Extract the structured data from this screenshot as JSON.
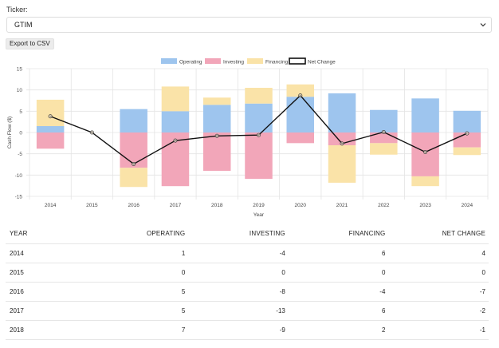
{
  "ticker": {
    "label": "Ticker:",
    "value": "GTIM"
  },
  "export_label": "Export to CSV",
  "colors": {
    "operating": "#9ec5ee",
    "investing": "#f2a6b9",
    "financing": "#fae3a8",
    "net": "#111111",
    "grid": "#e4e4e4"
  },
  "chart_data": {
    "type": "bar",
    "categories": [
      "2014",
      "2015",
      "2016",
      "2017",
      "2018",
      "2019",
      "2020",
      "2021",
      "2022",
      "2023",
      "2024"
    ],
    "series": [
      {
        "name": "Operating",
        "values": [
          1.5,
          0,
          5.5,
          5,
          6.5,
          6.8,
          8.4,
          9.2,
          5.3,
          8,
          5.1
        ]
      },
      {
        "name": "Investing",
        "values": [
          -3.8,
          0,
          -8.3,
          -12.6,
          -9,
          -10.9,
          -2.5,
          -3,
          -2.5,
          -10.3,
          -3.5
        ]
      },
      {
        "name": "Financing",
        "values": [
          6.2,
          0,
          -4.5,
          5.8,
          1.7,
          3.7,
          2.9,
          -8.8,
          -2.7,
          -2.3,
          -1.8
        ]
      },
      {
        "name": "Net Change",
        "type": "line",
        "values": [
          3.8,
          0,
          -7.4,
          -1.9,
          -0.8,
          -0.6,
          8.7,
          -2.6,
          0.1,
          -4.6,
          -0.2
        ]
      }
    ],
    "xlabel": "Year",
    "ylabel": "Cash Flow ($)",
    "ylim": [
      -15,
      15
    ],
    "yticks": [
      "15",
      "10",
      "5",
      "0",
      "-5",
      "-10",
      "-15"
    ],
    "stacked": true,
    "grid": true,
    "legend": "top-center"
  },
  "table": {
    "headers": [
      "YEAR",
      "OPERATING",
      "INVESTING",
      "FINANCING",
      "NET CHANGE"
    ],
    "rows": [
      [
        "2014",
        "1",
        "-4",
        "6",
        "4"
      ],
      [
        "2015",
        "0",
        "0",
        "0",
        "0"
      ],
      [
        "2016",
        "5",
        "-8",
        "-4",
        "-7"
      ],
      [
        "2017",
        "5",
        "-13",
        "6",
        "-2"
      ],
      [
        "2018",
        "7",
        "-9",
        "2",
        "-1"
      ]
    ]
  }
}
